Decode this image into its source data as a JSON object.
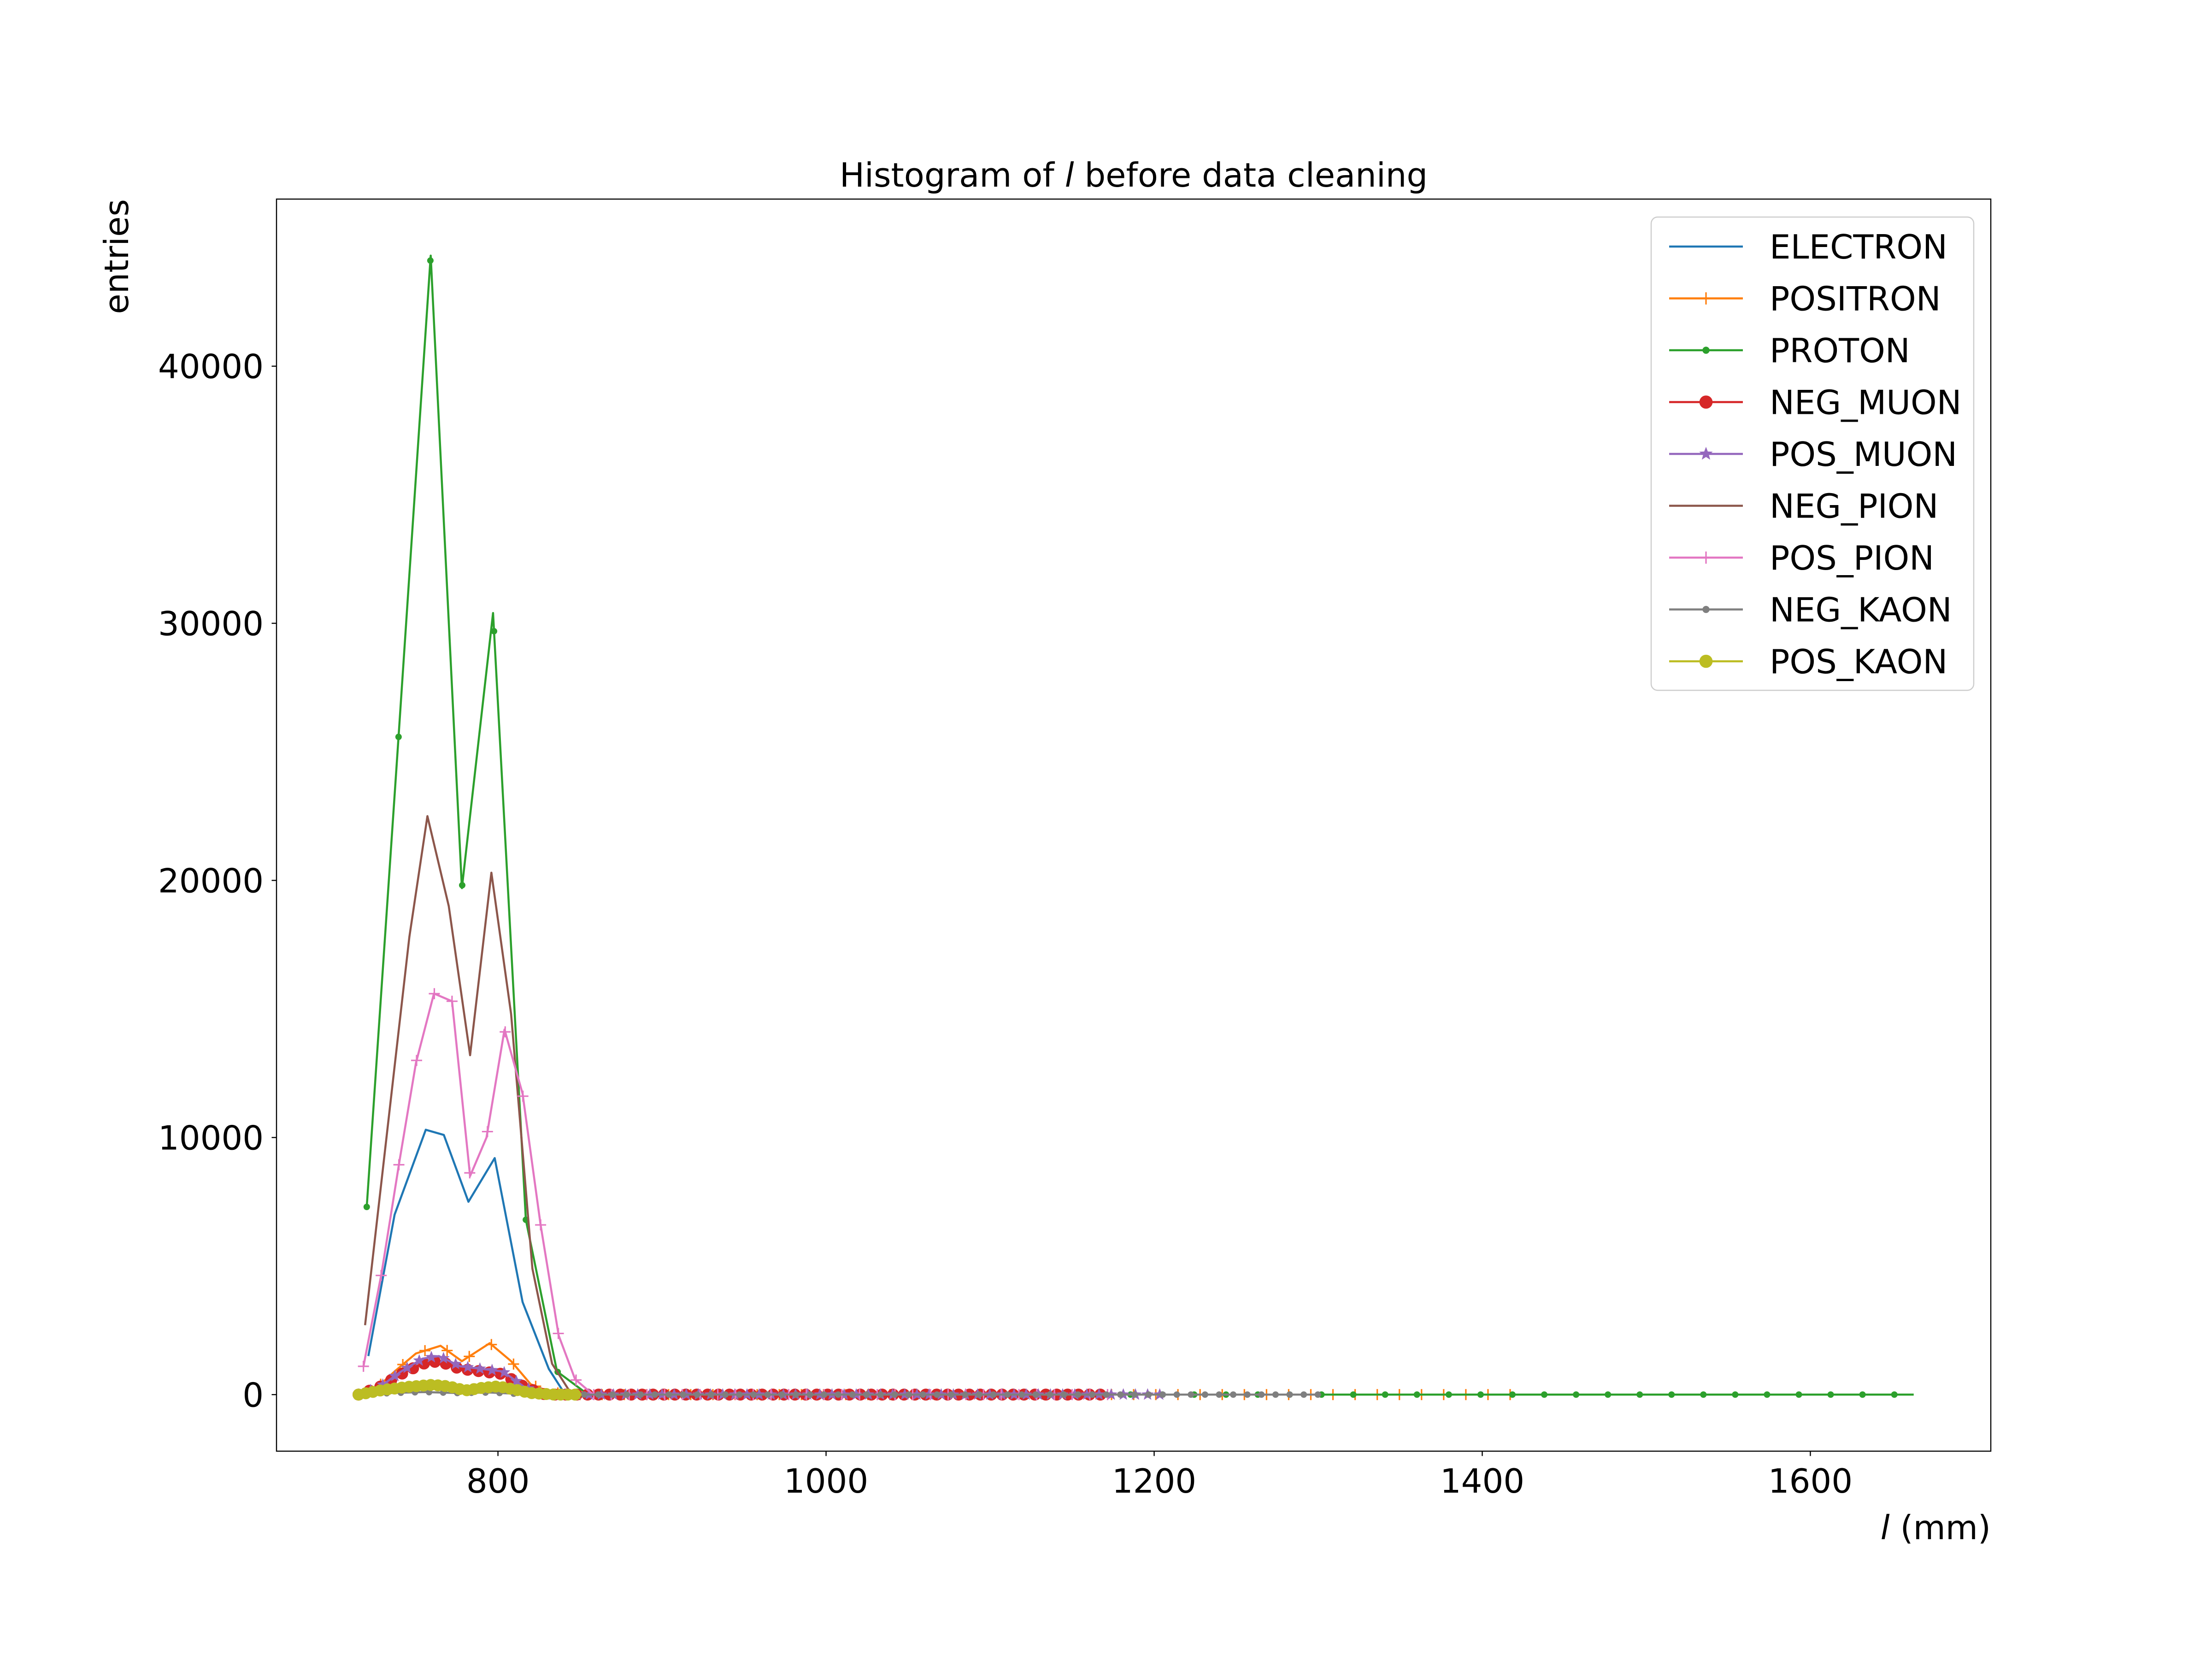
{
  "chart_data": {
    "type": "line",
    "title": "Histogram of l before data cleaning",
    "title_parts": {
      "before": "Histogram of ",
      "italic": "l",
      "after": " before data cleaning"
    },
    "xlabel": "l (mm)",
    "xlabel_parts": {
      "italic": "l",
      "rest": " (mm)"
    },
    "ylabel": "entries",
    "xlim": [
      665,
      1710
    ],
    "ylim": [
      -2200,
      46500
    ],
    "xticks": [
      800,
      1000,
      1200,
      1400,
      1600
    ],
    "xtick_labels": [
      "800",
      "1000",
      "1200",
      "1400",
      "1600"
    ],
    "yticks": [
      0,
      10000,
      20000,
      30000,
      40000
    ],
    "ytick_labels": [
      "0",
      "10000",
      "20000",
      "30000",
      "40000"
    ],
    "grid": false,
    "legend_position": "top-right",
    "series": [
      {
        "name": "ELECTRON",
        "color": "#1f77b4",
        "marker": "none",
        "points": [
          [
            721,
            1500
          ],
          [
            737,
            7000
          ],
          [
            756,
            10300
          ],
          [
            767,
            10100
          ],
          [
            782,
            7500
          ],
          [
            798,
            9200
          ],
          [
            815,
            3600
          ],
          [
            831,
            1000
          ],
          [
            840,
            100
          ],
          [
            850,
            0
          ]
        ]
      },
      {
        "name": "POSITRON",
        "color": "#ff7f0e",
        "marker": "plus",
        "extent": [
          715,
          1425
        ],
        "step": 13.5,
        "points": [
          [
            715,
            0
          ],
          [
            725,
            200
          ],
          [
            737,
            900
          ],
          [
            750,
            1600
          ],
          [
            765,
            1900
          ],
          [
            778,
            1300
          ],
          [
            795,
            2000
          ],
          [
            808,
            1300
          ],
          [
            820,
            400
          ],
          [
            832,
            100
          ],
          [
            845,
            0
          ],
          [
            1425,
            0
          ]
        ]
      },
      {
        "name": "PROTON",
        "color": "#2ca02c",
        "marker": "dot",
        "extent": [
          720,
          1663
        ],
        "step": 19.4,
        "points": [
          [
            720,
            7300
          ],
          [
            739,
            25200
          ],
          [
            759,
            44300
          ],
          [
            778,
            19700
          ],
          [
            797,
            30400
          ],
          [
            817,
            6800
          ],
          [
            836,
            900
          ],
          [
            855,
            0
          ],
          [
            1663,
            0
          ]
        ]
      },
      {
        "name": "NEG_MUON",
        "color": "#d62728",
        "marker": "bigdot",
        "extent": [
          715,
          1168
        ],
        "step": 6.65,
        "points": [
          [
            715,
            0
          ],
          [
            728,
            300
          ],
          [
            741,
            800
          ],
          [
            754,
            1200
          ],
          [
            764,
            1300
          ],
          [
            777,
            1000
          ],
          [
            790,
            900
          ],
          [
            803,
            800
          ],
          [
            816,
            300
          ],
          [
            829,
            0
          ],
          [
            1168,
            0
          ]
        ]
      },
      {
        "name": "POS_MUON",
        "color": "#9467bd",
        "marker": "star",
        "extent": [
          715,
          1210
        ],
        "step": 7.4,
        "points": [
          [
            715,
            0
          ],
          [
            728,
            300
          ],
          [
            741,
            900
          ],
          [
            754,
            1400
          ],
          [
            764,
            1500
          ],
          [
            777,
            1100
          ],
          [
            790,
            1000
          ],
          [
            803,
            900
          ],
          [
            816,
            300
          ],
          [
            829,
            0
          ],
          [
            1210,
            0
          ]
        ]
      },
      {
        "name": "NEG_PION",
        "color": "#8c564b",
        "marker": "none",
        "points": [
          [
            719,
            2700
          ],
          [
            746,
            17800
          ],
          [
            757,
            22500
          ],
          [
            770,
            19000
          ],
          [
            783,
            13200
          ],
          [
            796,
            20300
          ],
          [
            808,
            14800
          ],
          [
            821,
            4900
          ],
          [
            833,
            1200
          ],
          [
            843,
            200
          ],
          [
            850,
            0
          ]
        ]
      },
      {
        "name": "POS_PION",
        "color": "#e377c2",
        "marker": "plus",
        "extent": [
          718,
          1180
        ],
        "step": 10.8,
        "points": [
          [
            718,
            1100
          ],
          [
            729,
            4700
          ],
          [
            740,
            9100
          ],
          [
            750,
            12900
          ],
          [
            761,
            15600
          ],
          [
            772,
            15300
          ],
          [
            783,
            8500
          ],
          [
            793,
            10000
          ],
          [
            804,
            14200
          ],
          [
            815,
            11700
          ],
          [
            826,
            6600
          ],
          [
            837,
            2300
          ],
          [
            847,
            600
          ],
          [
            858,
            0
          ],
          [
            1180,
            0
          ]
        ]
      },
      {
        "name": "NEG_KAON",
        "color": "#7f7f7f",
        "marker": "dot",
        "extent": [
          715,
          1300
        ],
        "step": 8.6,
        "points": [
          [
            715,
            0
          ],
          [
            735,
            60
          ],
          [
            755,
            100
          ],
          [
            775,
            60
          ],
          [
            795,
            80
          ],
          [
            815,
            20
          ],
          [
            830,
            0
          ],
          [
            1300,
            0
          ]
        ]
      },
      {
        "name": "POS_KAON",
        "color": "#bcbd22",
        "marker": "bigdot",
        "extent": [
          715,
          851
        ],
        "step": 4.4,
        "points": [
          [
            715,
            0
          ],
          [
            730,
            180
          ],
          [
            745,
            300
          ],
          [
            760,
            380
          ],
          [
            770,
            320
          ],
          [
            780,
            160
          ],
          [
            790,
            260
          ],
          [
            800,
            320
          ],
          [
            810,
            200
          ],
          [
            820,
            60
          ],
          [
            835,
            0
          ],
          [
            851,
            0
          ]
        ]
      }
    ]
  }
}
